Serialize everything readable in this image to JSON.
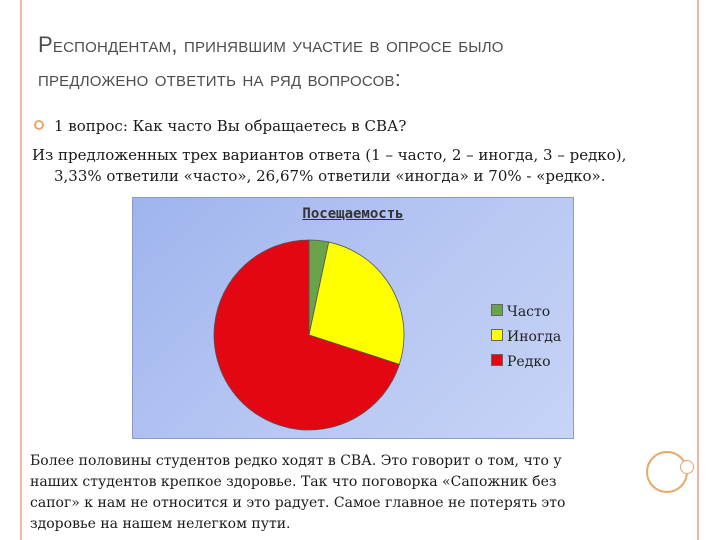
{
  "slide": {
    "title_line1": "Респондентам, принявшим участие в опросе было",
    "title_line2": "предложено ответить на ряд вопросов:",
    "bullet_text": "1 вопрос: Как часто Вы обращаетесь в СВА?",
    "para_line1": "Из предложенных трех вариантов ответа (1 – часто, 2 – иногда, 3 – редко),",
    "para_line2": "3,33% ответили «часто», 26,67% ответили «иногда» и 70% - «редко».",
    "footer_line1": "Более половины студентов редко ходят в СВА. Это говорит о том, что у",
    "footer_line2": "наших студентов крепкое здоровье. Так что поговорка «Сапожник без",
    "footer_line3": "сапог» к нам не относится и это радует. Самое главное не потерять это",
    "footer_line4": "здоровье на нашем нелегком пути."
  },
  "chart_data": {
    "type": "pie",
    "title": "Посещаемость",
    "categories": [
      "Часто",
      "Иногда",
      "Редко"
    ],
    "values": [
      3.33,
      26.67,
      70
    ],
    "colors": [
      "#6aa34a",
      "#ffff00",
      "#e30613"
    ],
    "legend_position": "right"
  },
  "colors": {
    "accent": "#e8a86b",
    "frame": "#f2b6a8",
    "chart_background": "#b4c4f2"
  }
}
